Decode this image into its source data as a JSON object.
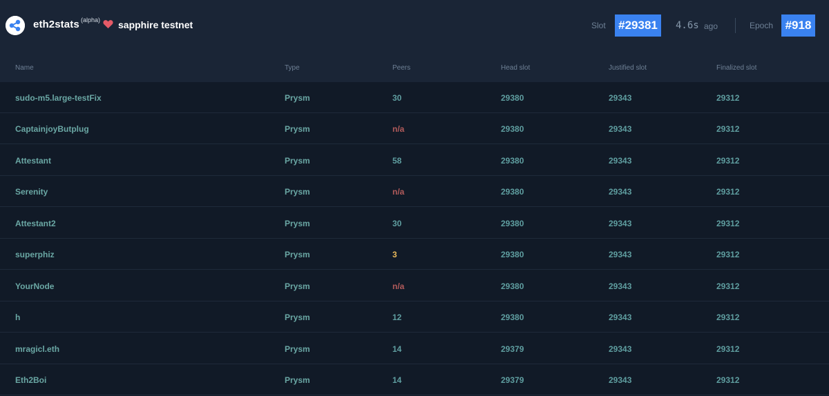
{
  "header": {
    "brand": "eth2stats",
    "badge": "(alpha)",
    "network": "sapphire testnet",
    "slot_label": "Slot",
    "slot_value": "#29381",
    "time_value": "4.6s",
    "time_suffix": "ago",
    "epoch_label": "Epoch",
    "epoch_value": "#918",
    "accent_color": "#3a82f0",
    "logo_icon": "eth2stats-logo-icon",
    "heart_icon": "heart-icon"
  },
  "table": {
    "columns": [
      "Name",
      "Type",
      "Peers",
      "Head slot",
      "Justified slot",
      "Finalized slot"
    ],
    "rows": [
      {
        "name": "sudo-m5.large-testFix",
        "type": "Prysm",
        "peers": "30",
        "peers_status": "ok",
        "head": "29380",
        "justified": "29343",
        "finalized": "29312"
      },
      {
        "name": "CaptainjoyButplug",
        "type": "Prysm",
        "peers": "n/a",
        "peers_status": "na",
        "head": "29380",
        "justified": "29343",
        "finalized": "29312"
      },
      {
        "name": "Attestant",
        "type": "Prysm",
        "peers": "58",
        "peers_status": "ok",
        "head": "29380",
        "justified": "29343",
        "finalized": "29312"
      },
      {
        "name": "Serenity",
        "type": "Prysm",
        "peers": "n/a",
        "peers_status": "na",
        "head": "29380",
        "justified": "29343",
        "finalized": "29312"
      },
      {
        "name": "Attestant2",
        "type": "Prysm",
        "peers": "30",
        "peers_status": "ok",
        "head": "29380",
        "justified": "29343",
        "finalized": "29312"
      },
      {
        "name": "superphiz",
        "type": "Prysm",
        "peers": "3",
        "peers_status": "warn",
        "head": "29380",
        "justified": "29343",
        "finalized": "29312"
      },
      {
        "name": "YourNode",
        "type": "Prysm",
        "peers": "n/a",
        "peers_status": "na",
        "head": "29380",
        "justified": "29343",
        "finalized": "29312"
      },
      {
        "name": "h",
        "type": "Prysm",
        "peers": "12",
        "peers_status": "ok",
        "head": "29380",
        "justified": "29343",
        "finalized": "29312"
      },
      {
        "name": "mragicl.eth",
        "type": "Prysm",
        "peers": "14",
        "peers_status": "ok",
        "head": "29379",
        "justified": "29343",
        "finalized": "29312"
      },
      {
        "name": "Eth2Boi",
        "type": "Prysm",
        "peers": "14",
        "peers_status": "ok",
        "head": "29379",
        "justified": "29343",
        "finalized": "29312"
      }
    ],
    "status_colors": {
      "ok": "#5f9ea0",
      "na": "#b25b5b",
      "warn": "#e8b85a"
    }
  }
}
